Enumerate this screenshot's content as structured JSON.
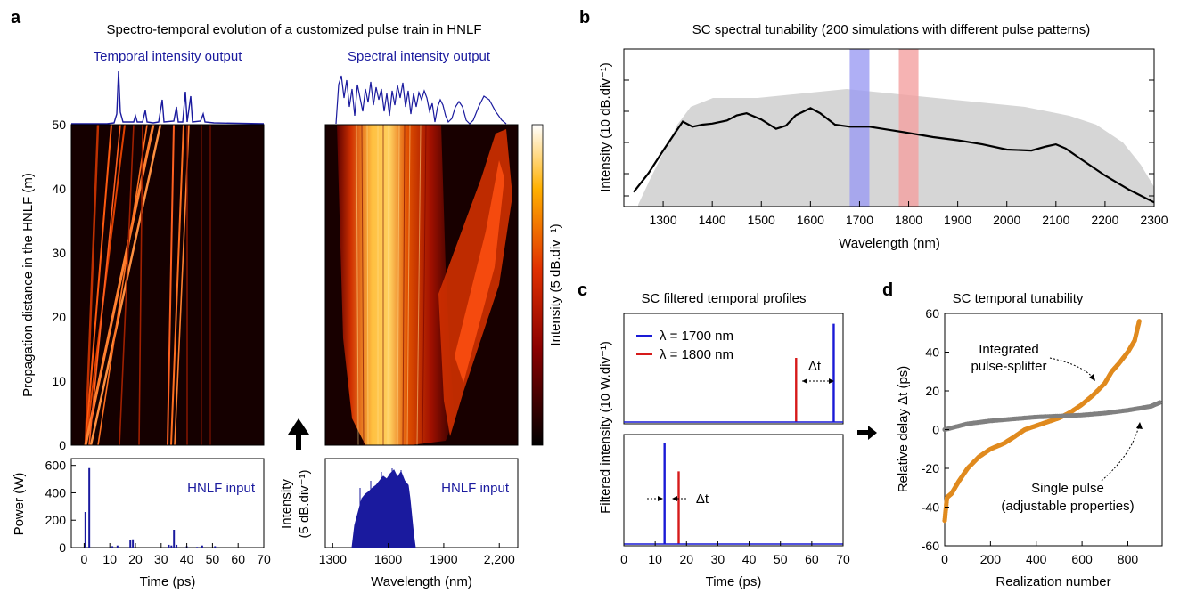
{
  "panels": {
    "a": {
      "letter": "a",
      "title": "Spectro-temporal evolution of a customized pulse train in HNLF",
      "temporal_output_label": "Temporal intensity output",
      "spectral_output_label": "Spectral intensity output",
      "map_ylabel": "Propagation distance in the HNLF (m)",
      "colorbar_label": "Intensity (5 dB.div⁻¹)",
      "input_temporal_label": "HNLF input",
      "input_spectral_label": "HNLF input",
      "input_temporal_ylabel": "Power (W)",
      "input_spectral_ylabel_line1": "Intensity",
      "input_spectral_ylabel_line2": "(5 dB.div⁻¹)",
      "time_xlabel": "Time (ps)",
      "wavelength_xlabel": "Wavelength (nm)",
      "accent_color": "#1a1a9e"
    },
    "b": {
      "letter": "b",
      "title": "SC spectral tunability (200 simulations with different pulse patterns)",
      "ylabel": "Intensity (10 dB.div⁻¹)",
      "xlabel": "Wavelength (nm)",
      "band_colors": [
        "#9b9bf2",
        "#f4a0a0"
      ]
    },
    "c": {
      "letter": "c",
      "title": "SC filtered temporal profiles",
      "ylabel": "Filtered intensity (10 W.div⁻¹)",
      "xlabel": "Time (ps)",
      "legend": [
        "λ = 1700 nm",
        "λ = 1800 nm"
      ],
      "delta_label": "Δt",
      "colors": [
        "#1a1ad6",
        "#d61a1a"
      ]
    },
    "d": {
      "letter": "d",
      "title": "SC temporal tunability",
      "ylabel": "Relative delay Δt (ps)",
      "xlabel": "Realization number",
      "annotation_splitter_line1": "Integrated",
      "annotation_splitter_line2": "pulse-splitter",
      "annotation_single_line1": "Single pulse",
      "annotation_single_line2": "(adjustable properties)",
      "colors": [
        "#e08a1e",
        "#808080"
      ]
    }
  },
  "chart_data": [
    {
      "panel": "a-map-time",
      "type": "heatmap",
      "x_ticks": [
        0,
        10,
        20,
        30,
        40,
        50,
        60,
        70
      ],
      "y_ticks": [
        0,
        10,
        20,
        30,
        40,
        50
      ],
      "xlim": [
        -5,
        70
      ],
      "ylim": [
        0,
        50
      ],
      "input_pulses_ps": [
        0.5,
        2,
        11,
        13,
        18,
        19,
        33,
        34,
        35,
        36,
        40,
        44,
        46,
        51
      ]
    },
    {
      "panel": "a-map-wavelength",
      "type": "heatmap",
      "xlim": [
        1300,
        2250
      ],
      "ylim": [
        0,
        50
      ]
    },
    {
      "panel": "a-input-time",
      "type": "bar",
      "x": [
        0.5,
        2,
        11,
        13,
        18,
        19,
        33,
        34,
        35,
        36,
        40,
        44,
        46,
        51
      ],
      "values": [
        260,
        580,
        10,
        15,
        55,
        60,
        20,
        15,
        130,
        20,
        10,
        5,
        15,
        10
      ],
      "x_ticks": [
        0,
        10,
        20,
        30,
        40,
        50,
        60,
        70
      ],
      "y_ticks": [
        0,
        200,
        400,
        600
      ],
      "xlim": [
        -5,
        70
      ],
      "ylim": [
        0,
        650
      ],
      "xlabel": "Time (ps)",
      "ylabel": "Power (W)"
    },
    {
      "panel": "a-input-wavelength",
      "type": "area",
      "x_ticks": [
        1300,
        1600,
        1900,
        2200
      ],
      "x_tick_labels": [
        "1300",
        "1600",
        "1900",
        "2,200"
      ],
      "xlim": [
        1260,
        2300
      ],
      "envelope_nm": [
        1420,
        1700
      ]
    },
    {
      "panel": "b",
      "type": "line",
      "x": [
        1240,
        1270,
        1300,
        1320,
        1340,
        1360,
        1380,
        1400,
        1430,
        1450,
        1470,
        1500,
        1530,
        1550,
        1570,
        1600,
        1620,
        1650,
        1680,
        1720,
        1760,
        1800,
        1850,
        1900,
        1950,
        2000,
        2050,
        2080,
        2100,
        2120,
        2150,
        2200,
        2250,
        2300
      ],
      "y": [
        1.3,
        2.2,
        3.3,
        4.0,
        4.7,
        4.45,
        4.55,
        4.6,
        4.75,
        5.0,
        5.1,
        4.8,
        4.35,
        4.5,
        5.0,
        5.35,
        5.1,
        4.55,
        4.45,
        4.45,
        4.3,
        4.15,
        3.95,
        3.8,
        3.6,
        3.35,
        3.3,
        3.5,
        3.6,
        3.4,
        2.9,
        2.1,
        1.4,
        0.8
      ],
      "x_ticks": [
        1300,
        1400,
        1500,
        1600,
        1700,
        1800,
        1900,
        2000,
        2100,
        2200,
        2300
      ],
      "xlim": [
        1220,
        2300
      ],
      "ylim": [
        0.6,
        8.2
      ],
      "bands_nm": [
        [
          1680,
          1720
        ],
        [
          1780,
          1820
        ]
      ],
      "xlabel": "Wavelength (nm)",
      "ylabel": "Intensity (10 dB.div⁻¹)"
    },
    {
      "panel": "c",
      "type": "line",
      "series_colors": [
        "#1a1ad6",
        "#d61a1a"
      ],
      "top_pulses": [
        {
          "t": 67,
          "h": 0.92
        },
        {
          "t": 55,
          "h": 0.6
        }
      ],
      "bottom_pulses": [
        {
          "t": 13,
          "h": 0.95
        },
        {
          "t": 17.5,
          "h": 0.68
        }
      ],
      "x_ticks": [
        0,
        10,
        20,
        30,
        40,
        50,
        60,
        70
      ],
      "xlim": [
        0,
        70
      ],
      "legend": [
        "λ = 1700 nm",
        "λ = 1800 nm"
      ],
      "xlabel": "Time (ps)",
      "ylabel": "Filtered intensity (10 W.div⁻¹)"
    },
    {
      "panel": "d",
      "type": "scatter",
      "series": [
        {
          "name": "Integrated pulse-splitter",
          "x": [
            0,
            10,
            30,
            60,
            100,
            150,
            200,
            260,
            300,
            350,
            400,
            450,
            500,
            550,
            600,
            650,
            700,
            730,
            760,
            800,
            830,
            850
          ],
          "y": [
            -47,
            -35,
            -33,
            -27,
            -20,
            -14,
            -10,
            -7,
            -4,
            0,
            2,
            4,
            6,
            9,
            13,
            18,
            24,
            30,
            34,
            40,
            46,
            56
          ]
        },
        {
          "name": "Single pulse (adjustable properties)",
          "x": [
            0,
            100,
            200,
            300,
            400,
            500,
            600,
            700,
            800,
            900,
            940
          ],
          "y": [
            0,
            3,
            4.5,
            5.5,
            6.5,
            7,
            7.5,
            8.5,
            10,
            12,
            14
          ]
        }
      ],
      "x_ticks": [
        0,
        200,
        400,
        600,
        800
      ],
      "y_ticks": [
        -60,
        -40,
        -20,
        0,
        20,
        40,
        60
      ],
      "xlim": [
        0,
        950
      ],
      "ylim": [
        -60,
        60
      ],
      "xlabel": "Realization number",
      "ylabel": "Relative delay Δt (ps)"
    }
  ]
}
